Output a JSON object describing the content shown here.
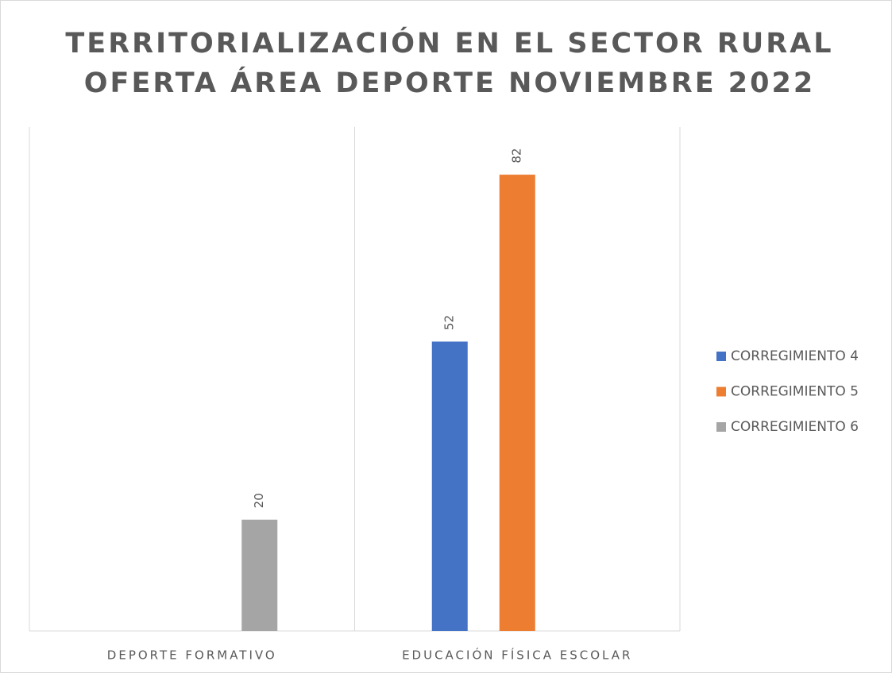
{
  "chart_data": {
    "type": "bar",
    "title": [
      "TERRITORIALIZACIÓN EN EL SECTOR RURAL",
      "OFERTA ÁREA DEPORTE NOVIEMBRE 2022"
    ],
    "categories": [
      "DEPORTE FORMATIVO",
      "EDUCACIÓN FÍSICA ESCOLAR"
    ],
    "series": [
      {
        "name": "CORREGIMIENTO 4",
        "color": "#4472c4",
        "values": [
          null,
          52
        ]
      },
      {
        "name": "CORREGIMIENTO 5",
        "color": "#ed7d31",
        "values": [
          null,
          82
        ]
      },
      {
        "name": "CORREGIMIENTO 6",
        "color": "#a5a5a5",
        "values": [
          20,
          null
        ]
      }
    ],
    "ylim": [
      0,
      90
    ],
    "legend": "right",
    "data_labels": true
  }
}
